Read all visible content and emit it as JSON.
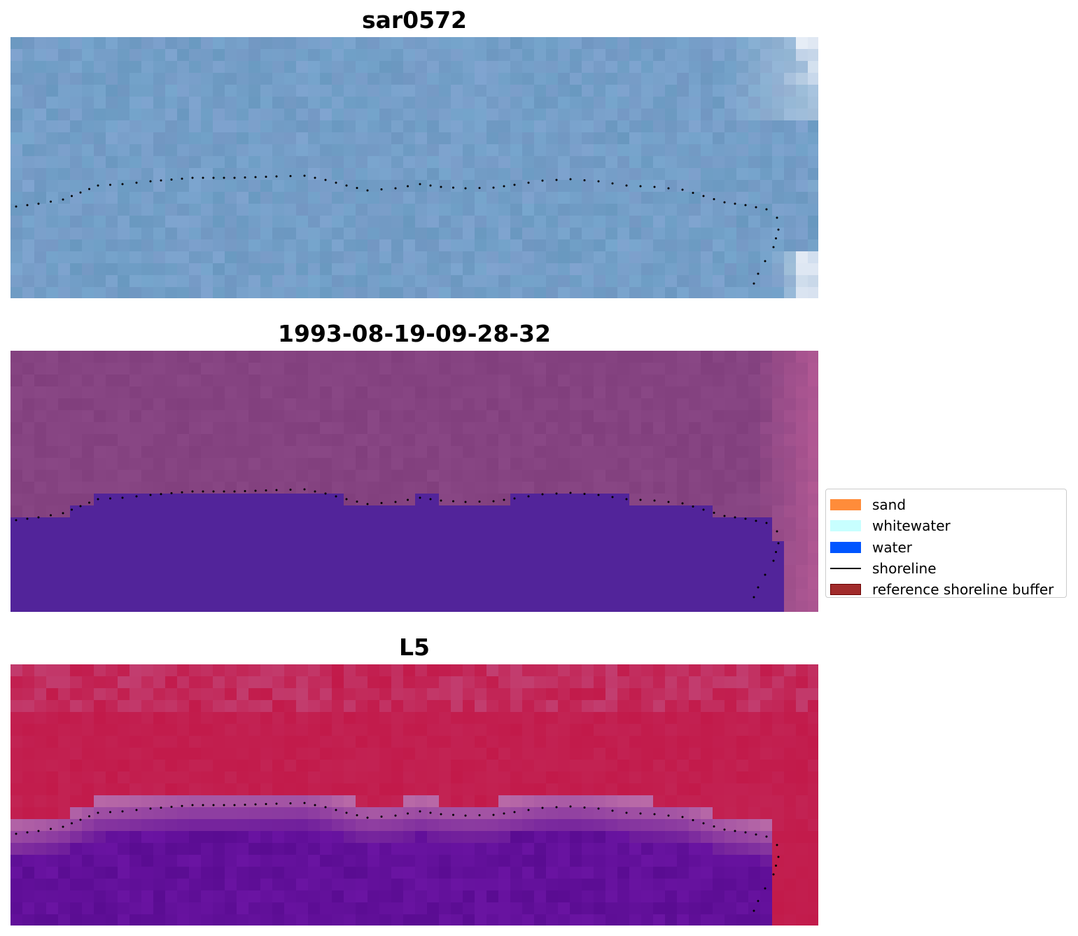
{
  "panels": [
    {
      "title": "sar0572",
      "style": "rgb",
      "colors": {
        "base": "#6f9fc6",
        "tint": "#7d9dca",
        "edge": "#e8eef7"
      }
    },
    {
      "title": "1993-08-19-09-28-32",
      "style": "classified",
      "colors": {
        "land": "#854381",
        "land_edge": "#b55a95",
        "water": "#52249a"
      }
    },
    {
      "title": "L5",
      "style": "index",
      "colors": {
        "land": "#c21a4a",
        "land_light": "#c2578a",
        "water": "#62109a",
        "transition": "#b96aa7"
      }
    }
  ],
  "legend": {
    "items": [
      {
        "label": "sand",
        "type": "patch",
        "color": "#ff8c3a"
      },
      {
        "label": "whitewater",
        "type": "patch",
        "color": "#c8ffff"
      },
      {
        "label": "water",
        "type": "patch",
        "color": "#0055ff"
      },
      {
        "label": "shoreline",
        "type": "line",
        "color": "#000000"
      },
      {
        "label": "reference shoreline buffer",
        "type": "patch",
        "color": "#a12b2b",
        "edge": "#6b0000"
      }
    ]
  }
}
